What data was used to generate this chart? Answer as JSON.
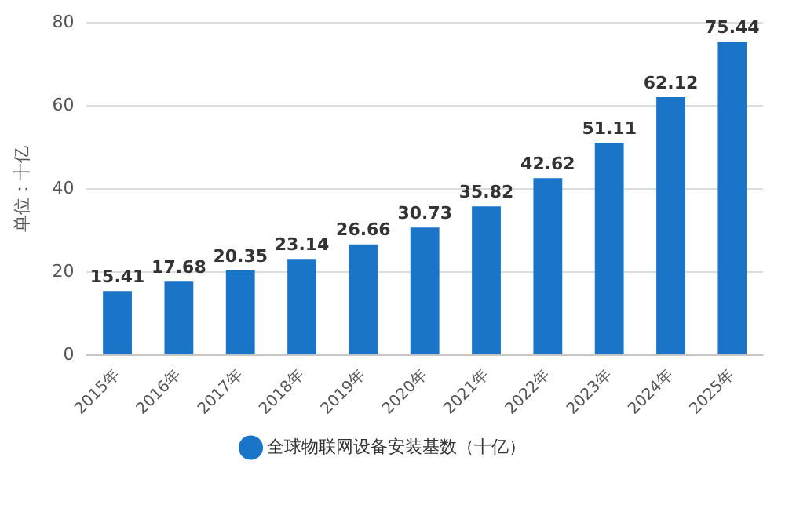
{
  "chart_data": {
    "type": "bar",
    "ylabel": "单位：十亿",
    "categories": [
      "2015年",
      "2016年",
      "2017年",
      "2018年",
      "2019年",
      "2020年",
      "2021年",
      "2022年",
      "2023年",
      "2024年",
      "2025年"
    ],
    "series": [
      {
        "name": "全球物联网设备安装基数（十亿）",
        "color": "#1a75c8",
        "values": [
          15.41,
          17.68,
          20.35,
          23.14,
          26.66,
          30.73,
          35.82,
          42.62,
          51.11,
          62.12,
          75.44
        ]
      }
    ],
    "ylim": [
      0,
      80
    ],
    "yticks": [
      0,
      20,
      40,
      60,
      80
    ],
    "grid": "y",
    "legend": "bottom",
    "data_labels": true
  }
}
